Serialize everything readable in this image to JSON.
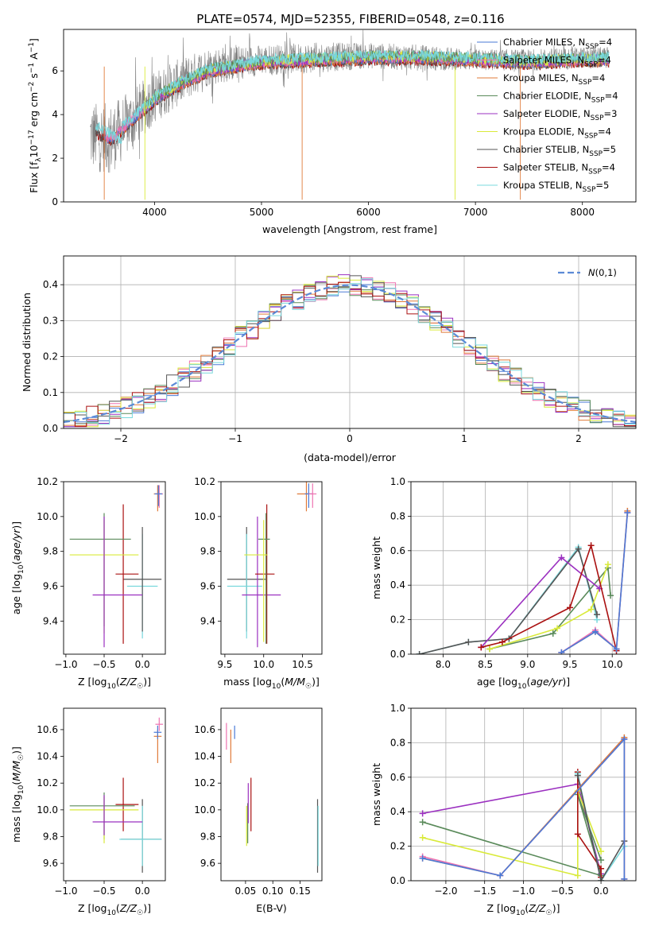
{
  "title": "PLATE=0574, MJD=52355, FIBERID=0548, z=0.116",
  "colors": {
    "Chabrier MILES": "#4a7ad6",
    "Salpeter MILES": "#ee72b0",
    "Kroupa MILES": "#e07b3a",
    "Chabrier ELODIE": "#5a8a5a",
    "Salpeter ELODIE": "#9b30c0",
    "Kroupa ELODIE": "#d9ea3a",
    "Chabrier STELIB": "#555555",
    "Salpeter STELIB": "#aa1111",
    "Kroupa STELIB": "#78d8dc",
    "data": "#808080",
    "normal": "#5b8ad6"
  },
  "chart_data": [
    {
      "type": "line",
      "xlabel": "wavelength [Angstrom, rest frame]",
      "ylabel": "Flux [f_λ 10^-17 erg cm^-2 s^-1 A^-1]",
      "xlim": [
        3150,
        8500
      ],
      "ylim": [
        0,
        7.9
      ],
      "xticks": [
        4000,
        5000,
        6000,
        7000,
        8000
      ],
      "yticks": [
        0,
        2,
        4,
        6
      ],
      "legend_position": "right",
      "legend": [
        {
          "label": "Chabrier MILES, N_SSP=4",
          "color": "Chabrier MILES"
        },
        {
          "label": "Salpeter MILES, N_SSP=4",
          "color": "Salpeter MILES"
        },
        {
          "label": "Kroupa MILES, N_SSP=4",
          "color": "Kroupa MILES"
        },
        {
          "label": "Chabrier ELODIE, N_SSP=4",
          "color": "Chabrier ELODIE"
        },
        {
          "label": "Salpeter ELODIE, N_SSP=3",
          "color": "Salpeter ELODIE"
        },
        {
          "label": "Kroupa ELODIE, N_SSP=4",
          "color": "Kroupa ELODIE"
        },
        {
          "label": "Chabrier STELIB, N_SSP=5",
          "color": "Chabrier STELIB"
        },
        {
          "label": "Salpeter STELIB, N_SSP=4",
          "color": "Salpeter STELIB"
        },
        {
          "label": "Kroupa STELIB, N_SSP=5",
          "color": "Kroupa STELIB"
        }
      ],
      "data_envelope": {
        "x": [
          3400,
          3600,
          3800,
          4000,
          4200,
          4500,
          5000,
          5500,
          6000,
          6500,
          7000,
          7500,
          8000,
          8250
        ],
        "y": [
          3.0,
          2.9,
          3.8,
          4.8,
          5.4,
          6.2,
          6.5,
          6.6,
          6.7,
          6.6,
          6.5,
          6.5,
          6.6,
          6.6
        ],
        "noise": [
          1.6,
          1.6,
          1.4,
          1.2,
          1.1,
          0.9,
          0.7,
          0.7,
          0.6,
          0.6,
          0.5,
          0.5,
          0.5,
          0.5
        ]
      },
      "model_envelope": {
        "x": [
          3450,
          3600,
          3800,
          4000,
          4200,
          4500,
          5000,
          5500,
          6000,
          6500,
          7000,
          7500,
          8000,
          8250
        ],
        "y": [
          3.2,
          2.9,
          3.8,
          4.7,
          5.3,
          6.0,
          6.4,
          6.5,
          6.6,
          6.6,
          6.5,
          6.4,
          6.5,
          6.5
        ]
      },
      "kroupa_stelib_start": [
        3450,
        3.5
      ]
    },
    {
      "type": "histogram",
      "xlabel": "(data-model)/error",
      "ylabel": "Normed distribution",
      "xlim": [
        -2.5,
        2.5
      ],
      "ylim": [
        0,
        0.48
      ],
      "xticks": [
        -2,
        -1,
        0,
        1,
        2
      ],
      "yticks": [
        0.0,
        0.1,
        0.2,
        0.3,
        0.4
      ],
      "grid": true,
      "legend_position": "top-right",
      "legend": [
        {
          "label": "N(0,1)",
          "color": "normal"
        }
      ],
      "bin_width": 0.1,
      "series_count": 9
    },
    {
      "type": "errorbar",
      "xlabel": "Z [log10(Z/Z☉)]",
      "ylabel": "age [log10(age/yr)]",
      "xlim": [
        -1.03,
        0.3
      ],
      "ylim": [
        9.21,
        10.2
      ],
      "xticks": [
        -1.0,
        -0.5,
        0.0
      ],
      "yticks": [
        9.4,
        9.6,
        9.8,
        10.0,
        10.2
      ],
      "points": [
        {
          "s": "Kroupa STELIB",
          "x": 0.0,
          "xe": [
            0.2,
            0.2
          ],
          "y": 9.6,
          "ye": [
            0.3,
            0.3
          ]
        },
        {
          "s": "Chabrier STELIB",
          "x": 0.0,
          "xe": [
            0.25,
            0.25
          ],
          "y": 9.64,
          "ye": [
            0.3,
            0.3
          ]
        },
        {
          "s": "Salpeter STELIB",
          "x": -0.25,
          "xe": [
            0.1,
            0.2
          ],
          "y": 9.67,
          "ye": [
            0.4,
            0.4
          ]
        },
        {
          "s": "Chabrier ELODIE",
          "x": -0.5,
          "xe": [
            0.45,
            0.35
          ],
          "y": 9.87,
          "ye": [
            0.5,
            0.15
          ]
        },
        {
          "s": "Kroupa ELODIE",
          "x": -0.5,
          "xe": [
            0.45,
            0.45
          ],
          "y": 9.78,
          "ye": [
            0.45,
            0.2
          ]
        },
        {
          "s": "Salpeter ELODIE",
          "x": -0.5,
          "xe": [
            0.15,
            0.5
          ],
          "y": 9.55,
          "ye": [
            0.3,
            0.45
          ]
        },
        {
          "s": "Kroupa MILES",
          "x": 0.2,
          "xe": [
            0.05,
            0.05
          ],
          "y": 10.13,
          "ye": [
            0.1,
            0.05
          ]
        },
        {
          "s": "Salpeter MILES",
          "x": 0.22,
          "xe": [
            0.05,
            0.05
          ],
          "y": 10.13,
          "ye": [
            0.08,
            0.05
          ]
        },
        {
          "s": "Chabrier MILES",
          "x": 0.21,
          "xe": [
            0.05,
            0.05
          ],
          "y": 10.13,
          "ye": [
            0.07,
            0.05
          ]
        }
      ]
    },
    {
      "type": "errorbar",
      "xlabel": "mass [log10(M/M☉)]",
      "ylabel": "",
      "xlim": [
        9.45,
        10.75
      ],
      "ylim": [
        9.21,
        10.2
      ],
      "xticks": [
        9.5,
        10.0,
        10.5
      ],
      "yticks": [
        9.4,
        9.6,
        9.8,
        10.0,
        10.2
      ],
      "points": [
        {
          "s": "Chabrier STELIB",
          "x": 9.78,
          "xe": [
            0.25,
            0.25
          ],
          "y": 9.64,
          "ye": [
            0.3,
            0.3
          ]
        },
        {
          "s": "Kroupa STELIB",
          "x": 9.78,
          "xe": [
            0.25,
            0.2
          ],
          "y": 9.6,
          "ye": [
            0.3,
            0.3
          ]
        },
        {
          "s": "Salpeter ELODIE",
          "x": 9.92,
          "xe": [
            0.2,
            0.3
          ],
          "y": 9.55,
          "ye": [
            0.3,
            0.45
          ]
        },
        {
          "s": "Salpeter STELIB",
          "x": 10.04,
          "xe": [
            0.15,
            0.1
          ],
          "y": 9.67,
          "ye": [
            0.4,
            0.4
          ]
        },
        {
          "s": "Chabrier ELODIE",
          "x": 10.03,
          "xe": [
            0.1,
            0.05
          ],
          "y": 9.87,
          "ye": [
            0.6,
            0.15
          ]
        },
        {
          "s": "Kroupa ELODIE",
          "x": 10.0,
          "xe": [
            0.25,
            0.05
          ],
          "y": 9.78,
          "ye": [
            0.5,
            0.2
          ]
        },
        {
          "s": "Kroupa MILES",
          "x": 10.55,
          "xe": [
            0.12,
            0.05
          ],
          "y": 10.13,
          "ye": [
            0.1,
            0.08
          ]
        },
        {
          "s": "Chabrier MILES",
          "x": 10.58,
          "xe": [
            0.05,
            0.05
          ],
          "y": 10.13,
          "ye": [
            0.08,
            0.06
          ]
        },
        {
          "s": "Salpeter MILES",
          "x": 10.63,
          "xe": [
            0.05,
            0.05
          ],
          "y": 10.13,
          "ye": [
            0.08,
            0.06
          ]
        }
      ]
    },
    {
      "type": "line",
      "xlabel": "age [log10(age/yr)]",
      "ylabel": "mass weight",
      "xlim": [
        7.62,
        10.28
      ],
      "ylim": [
        0,
        1.0
      ],
      "xticks": [
        8.0,
        8.5,
        9.0,
        9.5,
        10.0
      ],
      "yticks": [
        0.0,
        0.2,
        0.4,
        0.6,
        0.8,
        1.0
      ],
      "grid": true,
      "series": [
        {
          "s": "Kroupa STELIB",
          "x": [
            7.72,
            8.3,
            8.78,
            9.6,
            9.82
          ],
          "y": [
            0.0,
            0.07,
            0.09,
            0.62,
            0.2
          ]
        },
        {
          "s": "Chabrier STELIB",
          "x": [
            7.72,
            8.3,
            8.78,
            9.6,
            9.82
          ],
          "y": [
            0.0,
            0.07,
            0.09,
            0.61,
            0.23
          ]
        },
        {
          "s": "Chabrier ELODIE",
          "x": [
            8.55,
            9.3,
            9.95,
            9.98
          ],
          "y": [
            0.03,
            0.12,
            0.5,
            0.34
          ]
        },
        {
          "s": "Kroupa ELODIE",
          "x": [
            8.55,
            9.35,
            9.75,
            9.95
          ],
          "y": [
            0.03,
            0.15,
            0.26,
            0.52
          ]
        },
        {
          "s": "Salpeter ELODIE",
          "x": [
            8.45,
            9.4,
            9.85
          ],
          "y": [
            0.04,
            0.56,
            0.38
          ]
        },
        {
          "s": "Salpeter STELIB",
          "x": [
            8.45,
            8.7,
            9.5,
            9.75,
            10.05
          ],
          "y": [
            0.04,
            0.07,
            0.27,
            0.63,
            0.02
          ]
        },
        {
          "s": "Kroupa MILES",
          "x": [
            9.4,
            9.8,
            10.05,
            10.18
          ],
          "y": [
            0.01,
            0.13,
            0.03,
            0.83
          ]
        },
        {
          "s": "Salpeter MILES",
          "x": [
            9.4,
            9.8,
            10.05,
            10.18
          ],
          "y": [
            0.01,
            0.14,
            0.03,
            0.82
          ]
        },
        {
          "s": "Chabrier MILES",
          "x": [
            9.4,
            9.8,
            10.05,
            10.18
          ],
          "y": [
            0.01,
            0.13,
            0.03,
            0.82
          ]
        }
      ]
    },
    {
      "type": "errorbar",
      "xlabel": "Z [log10(Z/Z☉)]",
      "ylabel": "mass [log10(M/M☉)]",
      "xlim": [
        -1.03,
        0.3
      ],
      "ylim": [
        9.47,
        10.76
      ],
      "xticks": [
        -1.0,
        -0.5,
        0.0
      ],
      "yticks": [
        9.6,
        9.8,
        10.0,
        10.2,
        10.4,
        10.6
      ],
      "points": [
        {
          "s": "Chabrier STELIB",
          "x": 0.0,
          "xe": [
            0.28,
            0.25
          ],
          "y": 9.78,
          "ye": [
            0.25,
            0.3
          ]
        },
        {
          "s": "Kroupa STELIB",
          "x": 0.0,
          "xe": [
            0.3,
            0.25
          ],
          "y": 9.78,
          "ye": [
            0.2,
            0.25
          ]
        },
        {
          "s": "Salpeter STELIB",
          "x": -0.25,
          "xe": [
            0.1,
            0.2
          ],
          "y": 10.04,
          "ye": [
            0.2,
            0.2
          ]
        },
        {
          "s": "Chabrier ELODIE",
          "x": -0.5,
          "xe": [
            0.45,
            0.4
          ],
          "y": 10.03,
          "ye": [
            0.25,
            0.1
          ]
        },
        {
          "s": "Kroupa ELODIE",
          "x": -0.5,
          "xe": [
            0.45,
            0.45
          ],
          "y": 10.0,
          "ye": [
            0.25,
            0.1
          ]
        },
        {
          "s": "Salpeter ELODIE",
          "x": -0.5,
          "xe": [
            0.15,
            0.5
          ],
          "y": 9.91,
          "ye": [
            0.1,
            0.2
          ]
        },
        {
          "s": "Kroupa MILES",
          "x": 0.2,
          "xe": [
            0.05,
            0.05
          ],
          "y": 10.55,
          "ye": [
            0.2,
            0.05
          ]
        },
        {
          "s": "Chabrier MILES",
          "x": 0.2,
          "xe": [
            0.05,
            0.05
          ],
          "y": 10.58,
          "ye": [
            0.05,
            0.05
          ]
        },
        {
          "s": "Salpeter MILES",
          "x": 0.22,
          "xe": [
            0.05,
            0.05
          ],
          "y": 10.64,
          "ye": [
            0.05,
            0.05
          ]
        }
      ]
    },
    {
      "type": "errorbar",
      "xlabel": "E(B-V)",
      "ylabel": "",
      "xlim": [
        0.005,
        0.19
      ],
      "ylim": [
        9.47,
        10.76
      ],
      "xticks": [
        0.05,
        0.1,
        0.15
      ],
      "yticks": [
        9.6,
        9.8,
        10.0,
        10.2,
        10.4,
        10.6
      ],
      "points": [
        {
          "s": "Salpeter MILES",
          "x": 0.015,
          "xe": [
            0,
            0
          ],
          "y": 10.55,
          "ye": [
            0.1,
            0.1
          ]
        },
        {
          "s": "Kroupa MILES",
          "x": 0.023,
          "xe": [
            0,
            0
          ],
          "y": 10.55,
          "ye": [
            0.2,
            0.05
          ]
        },
        {
          "s": "Chabrier MILES",
          "x": 0.03,
          "xe": [
            0,
            0
          ],
          "y": 10.58,
          "ye": [
            0.05,
            0.05
          ]
        },
        {
          "s": "Kroupa ELODIE",
          "x": 0.052,
          "xe": [
            0,
            0
          ],
          "y": 9.98,
          "ye": [
            0.25,
            0.05
          ]
        },
        {
          "s": "Chabrier ELODIE",
          "x": 0.054,
          "xe": [
            0,
            0
          ],
          "y": 10.0,
          "ye": [
            0.25,
            0.05
          ]
        },
        {
          "s": "Salpeter ELODIE",
          "x": 0.055,
          "xe": [
            0,
            0
          ],
          "y": 10.05,
          "ye": [
            0.15,
            0.15
          ]
        },
        {
          "s": "Salpeter STELIB",
          "x": 0.06,
          "xe": [
            0,
            0
          ],
          "y": 10.04,
          "ye": [
            0.2,
            0.2
          ]
        },
        {
          "s": "Chabrier STELIB",
          "x": 0.182,
          "xe": [
            0,
            0
          ],
          "y": 9.78,
          "ye": [
            0.25,
            0.3
          ]
        },
        {
          "s": "Kroupa STELIB",
          "x": 0.183,
          "xe": [
            0,
            0
          ],
          "y": 9.78,
          "ye": [
            0.2,
            0.25
          ]
        }
      ]
    },
    {
      "type": "line",
      "xlabel": "Z [log10(Z/Z☉)]",
      "ylabel": "mass weight",
      "xlim": [
        -2.45,
        0.45
      ],
      "ylim": [
        0,
        1.0
      ],
      "xticks": [
        -2.0,
        -1.5,
        -1.0,
        -0.5,
        0.0
      ],
      "yticks": [
        0.0,
        0.2,
        0.4,
        0.6,
        0.8,
        1.0
      ],
      "grid": true,
      "series": [
        {
          "s": "Salpeter ELODIE",
          "x": [
            -2.3,
            -0.3,
            0.0
          ],
          "y": [
            0.39,
            0.56,
            0.04
          ]
        },
        {
          "s": "Chabrier ELODIE",
          "x": [
            -2.3,
            0.0,
            -0.3,
            0.0
          ],
          "y": [
            0.34,
            0.03,
            0.5,
            0.12
          ]
        },
        {
          "s": "Kroupa ELODIE",
          "x": [
            -2.3,
            -0.3,
            -0.3,
            0.0
          ],
          "y": [
            0.25,
            0.03,
            0.52,
            0.17
          ]
        },
        {
          "s": "Salpeter STELIB",
          "x": [
            -0.3,
            -0.3,
            0.0,
            0.0
          ],
          "y": [
            0.63,
            0.27,
            0.07,
            0.02
          ]
        },
        {
          "s": "Kroupa STELIB",
          "x": [
            -0.3,
            0.0,
            0.3
          ],
          "y": [
            0.62,
            0.0,
            0.2
          ]
        },
        {
          "s": "Chabrier STELIB",
          "x": [
            -0.3,
            0.0,
            0.3
          ],
          "y": [
            0.61,
            0.0,
            0.23
          ]
        },
        {
          "s": "Kroupa MILES",
          "x": [
            -2.3,
            -1.3,
            0.3,
            0.3
          ],
          "y": [
            0.13,
            0.03,
            0.83,
            0.01
          ]
        },
        {
          "s": "Salpeter MILES",
          "x": [
            -2.3,
            -1.3,
            0.3,
            0.3
          ],
          "y": [
            0.14,
            0.03,
            0.82,
            0.01
          ]
        },
        {
          "s": "Chabrier MILES",
          "x": [
            -2.3,
            -1.3,
            0.3,
            0.3
          ],
          "y": [
            0.13,
            0.03,
            0.82,
            0.01
          ]
        }
      ]
    }
  ]
}
